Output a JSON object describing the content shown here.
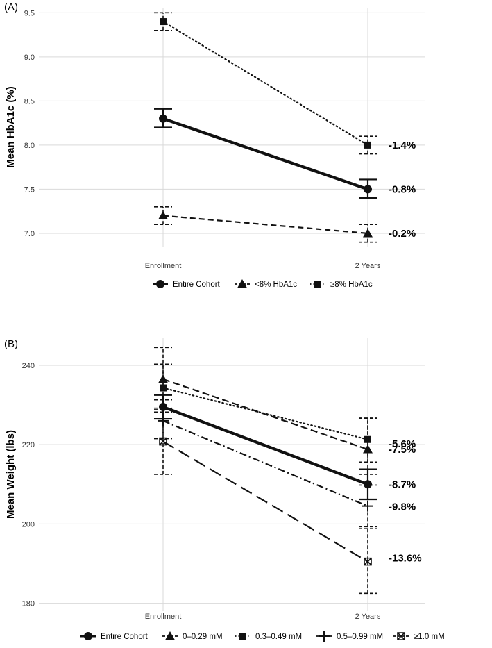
{
  "chart_data": [
    {
      "type": "line",
      "panel_label": "(A)",
      "ylabel": "Mean HbA1c (%)",
      "xlabel": "",
      "categories": [
        "Enrollment",
        "2 Years"
      ],
      "ylim": [
        6.85,
        9.55
      ],
      "yticks": [
        7.0,
        7.5,
        8.0,
        8.5,
        9.0,
        9.5
      ],
      "ytick_labels": [
        "7.0",
        "7.5",
        "8.0",
        "8.5",
        "9.0",
        "9.5"
      ],
      "grid": true,
      "legend_position": "bottom",
      "series": [
        {
          "name": "Entire Cohort",
          "marker": "circle",
          "dash": "solid",
          "values": [
            8.3,
            7.5
          ],
          "err_low": [
            8.2,
            7.4
          ],
          "err_high": [
            8.41,
            7.61
          ],
          "end_label": "-0.8%"
        },
        {
          "name": "<8% HbA1c",
          "marker": "triangle",
          "dash": "dashed",
          "values": [
            7.2,
            7.0
          ],
          "err_low": [
            7.1,
            6.9
          ],
          "err_high": [
            7.3,
            7.1
          ],
          "end_label": "-0.2%"
        },
        {
          "name": "≥8% HbA1c",
          "marker": "square",
          "dash": "dotted",
          "values": [
            9.4,
            8.0
          ],
          "err_low": [
            9.3,
            7.9
          ],
          "err_high": [
            9.5,
            8.1
          ],
          "end_label": "-1.4%"
        }
      ]
    },
    {
      "type": "line",
      "panel_label": "(B)",
      "ylabel": "Mean Weight (lbs)",
      "xlabel": "",
      "categories": [
        "Enrollment",
        "2 Years"
      ],
      "ylim": [
        178,
        247
      ],
      "yticks": [
        180,
        200,
        220,
        240
      ],
      "ytick_labels": [
        "180",
        "200",
        "220",
        "240"
      ],
      "grid": true,
      "legend_position": "bottom",
      "series": [
        {
          "name": "Entire Cohort",
          "marker": "circle",
          "dash": "solid",
          "values": [
            229.5,
            210.0
          ],
          "err_low": [
            226.5,
            206.2
          ],
          "err_high": [
            232.5,
            213.8
          ],
          "end_label": "-8.7%"
        },
        {
          "name": "0–0.29 mM",
          "marker": "triangle",
          "dash": "longdash",
          "values": [
            236.5,
            218.8
          ],
          "err_low": [
            229.2,
            212.5
          ],
          "err_high": [
            244.5,
            226.5
          ],
          "end_label": "-7.5%"
        },
        {
          "name": "0.3–0.49 mM",
          "marker": "square",
          "dash": "dotted",
          "values": [
            234.3,
            221.3
          ],
          "err_low": [
            228.2,
            215.6
          ],
          "err_high": [
            240.3,
            226.7
          ],
          "end_label": "-5.6%"
        },
        {
          "name": "0.5–0.99 mM",
          "marker": "plus",
          "dash": "dotdash",
          "values": [
            226.0,
            204.5
          ],
          "err_low": [
            221.5,
            199.3
          ],
          "err_high": [
            231.3,
            209.8
          ],
          "end_label": "-9.8%"
        },
        {
          "name": "≥1.0 mM",
          "marker": "boxx",
          "dash": "bigdash",
          "values": [
            220.8,
            190.5
          ],
          "err_low": [
            212.5,
            182.5
          ],
          "err_high": [
            228.8,
            198.8
          ],
          "end_label": "-13.6%"
        }
      ]
    }
  ]
}
